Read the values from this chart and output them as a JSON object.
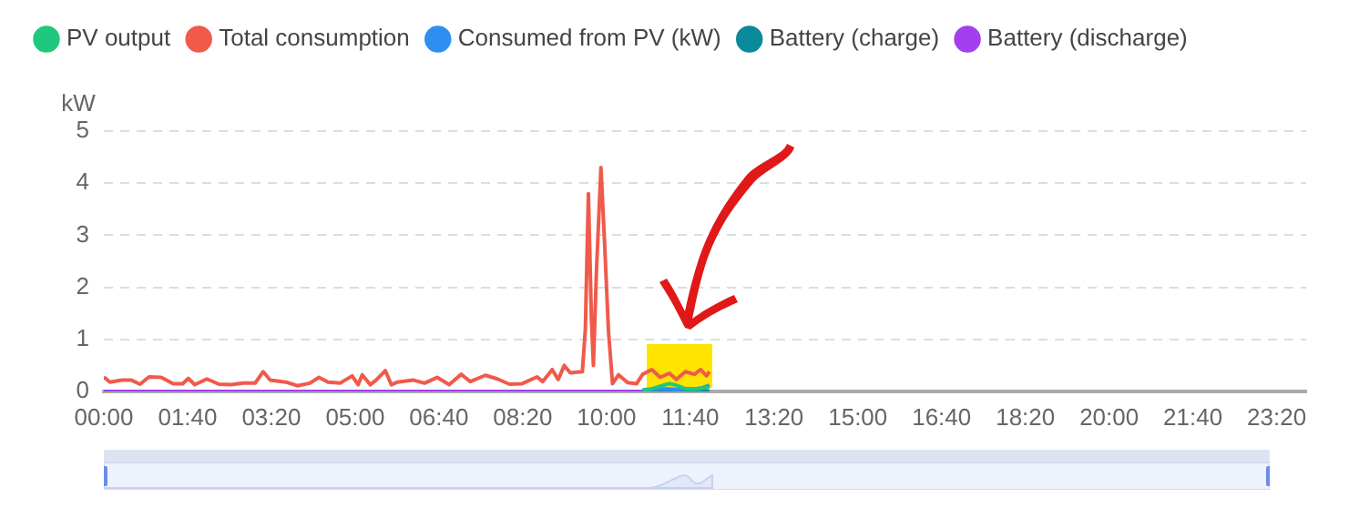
{
  "chart_data": {
    "type": "line",
    "ylabel": "kW",
    "xlim": [
      0,
      23.92
    ],
    "ylim": [
      0,
      5
    ],
    "yticks": [
      0,
      1,
      2,
      3,
      4,
      5
    ],
    "xticks": [
      {
        "value": 0,
        "label": "00:00"
      },
      {
        "value": 1.6667,
        "label": "01:40"
      },
      {
        "value": 3.3333,
        "label": "03:20"
      },
      {
        "value": 5,
        "label": "05:00"
      },
      {
        "value": 6.6667,
        "label": "06:40"
      },
      {
        "value": 8.3333,
        "label": "08:20"
      },
      {
        "value": 10,
        "label": "10:00"
      },
      {
        "value": 11.6667,
        "label": "11:40"
      },
      {
        "value": 13.3333,
        "label": "13:20"
      },
      {
        "value": 15,
        "label": "15:00"
      },
      {
        "value": 16.6667,
        "label": "16:40"
      },
      {
        "value": 18.3333,
        "label": "18:20"
      },
      {
        "value": 20,
        "label": "20:00"
      },
      {
        "value": 21.6667,
        "label": "21:40"
      },
      {
        "value": 23.3333,
        "label": "23:20"
      }
    ],
    "grid": "y",
    "legend": "top",
    "marker": "none",
    "line_style": "solid",
    "series": [
      {
        "name": "PV output",
        "color": "#1fc87e",
        "x": [
          10.72,
          10.9,
          11.07,
          11.25,
          11.39,
          11.57,
          11.75,
          12.05
        ],
        "values": [
          0.03,
          0.05,
          0.1,
          0.15,
          0.12,
          0.05,
          0.05,
          0.08
        ]
      },
      {
        "name": "Total consumption",
        "color": "#f05a4a",
        "x": [
          0,
          0.12,
          0.36,
          0.54,
          0.72,
          0.9,
          1.14,
          1.38,
          1.57,
          1.68,
          1.81,
          2.05,
          2.29,
          2.53,
          2.77,
          3.01,
          3.17,
          3.31,
          3.62,
          3.85,
          4.1,
          4.28,
          4.46,
          4.7,
          4.94,
          5.06,
          5.14,
          5.3,
          5.42,
          5.6,
          5.72,
          5.84,
          6.15,
          6.38,
          6.63,
          6.87,
          7.11,
          7.29,
          7.59,
          7.83,
          8.07,
          8.32,
          8.62,
          8.73,
          8.92,
          9.04,
          9.16,
          9.28,
          9.52,
          9.58,
          9.64,
          9.7,
          9.74,
          9.8,
          9.89,
          9.96,
          10.04,
          10.12,
          10.24,
          10.42,
          10.6,
          10.72,
          10.9,
          11.07,
          11.25,
          11.39,
          11.57,
          11.75,
          11.87,
          11.99,
          12.05
        ],
        "values": [
          0.28,
          0.18,
          0.22,
          0.22,
          0.14,
          0.28,
          0.27,
          0.15,
          0.15,
          0.25,
          0.13,
          0.24,
          0.14,
          0.13,
          0.16,
          0.16,
          0.38,
          0.22,
          0.18,
          0.11,
          0.16,
          0.27,
          0.18,
          0.16,
          0.3,
          0.13,
          0.32,
          0.13,
          0.22,
          0.4,
          0.13,
          0.18,
          0.22,
          0.16,
          0.27,
          0.13,
          0.33,
          0.19,
          0.31,
          0.24,
          0.14,
          0.15,
          0.28,
          0.19,
          0.42,
          0.23,
          0.5,
          0.36,
          0.38,
          1.2,
          3.8,
          1.4,
          0.5,
          2.3,
          4.3,
          2.9,
          1.15,
          0.15,
          0.32,
          0.17,
          0.15,
          0.33,
          0.42,
          0.27,
          0.35,
          0.23,
          0.38,
          0.33,
          0.42,
          0.3,
          0.38
        ]
      },
      {
        "name": "Consumed from PV (kW)",
        "color": "#2f8ff0",
        "x": [
          10.72,
          10.9,
          11.07,
          11.25,
          11.39,
          11.57,
          11.75,
          11.87,
          12.05
        ],
        "values": [
          0.03,
          0.04,
          0.05,
          0.05,
          0.04,
          0.05,
          0.05,
          0.06,
          0.12
        ]
      },
      {
        "name": "Battery (charge)",
        "color": "#0b8a9c",
        "x": [
          10.72,
          12.05
        ],
        "values": [
          0,
          0
        ]
      },
      {
        "name": "Battery (discharge)",
        "color": "#a33ff0",
        "x": [
          0,
          12.05
        ],
        "values": [
          0,
          0
        ]
      }
    ]
  }
}
